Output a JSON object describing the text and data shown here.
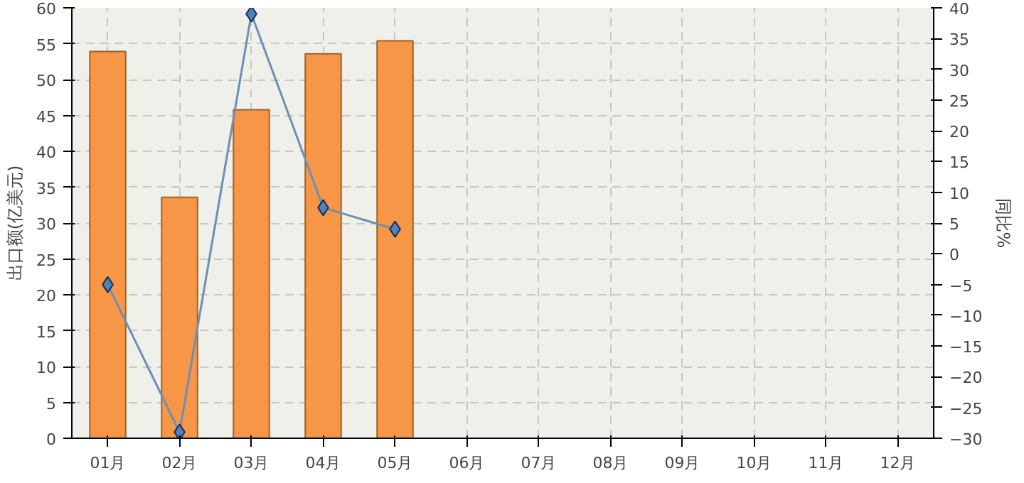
{
  "chart_data": {
    "type": "bar",
    "categories": [
      "01月",
      "02月",
      "03月",
      "04月",
      "05月",
      "06月",
      "07月",
      "08月",
      "09月",
      "10月",
      "11月",
      "12月"
    ],
    "ylabel": "出口额(亿美元)",
    "y2label": "同比%",
    "ylim": [
      0,
      60
    ],
    "yticks": [
      0,
      5,
      10,
      15,
      20,
      25,
      30,
      35,
      40,
      45,
      50,
      55,
      60
    ],
    "y2lim": [
      -30,
      40
    ],
    "y2ticks": [
      -30,
      -25,
      -20,
      -15,
      -10,
      -5,
      0,
      5,
      10,
      15,
      20,
      25,
      30,
      35,
      40
    ],
    "grid": true,
    "series": [
      {
        "color": "#f79646",
        "values": [
          53.9,
          33.6,
          45.8,
          53.6,
          55.4,
          null,
          null,
          null,
          null,
          null,
          null,
          null
        ]
      },
      {
        "type": "line",
        "axis": "y2",
        "color": "#6d8fb5",
        "marker": "diamond",
        "values": [
          -5,
          -29,
          39,
          7.5,
          4,
          null,
          null,
          null,
          null,
          null,
          null,
          null
        ]
      }
    ]
  }
}
